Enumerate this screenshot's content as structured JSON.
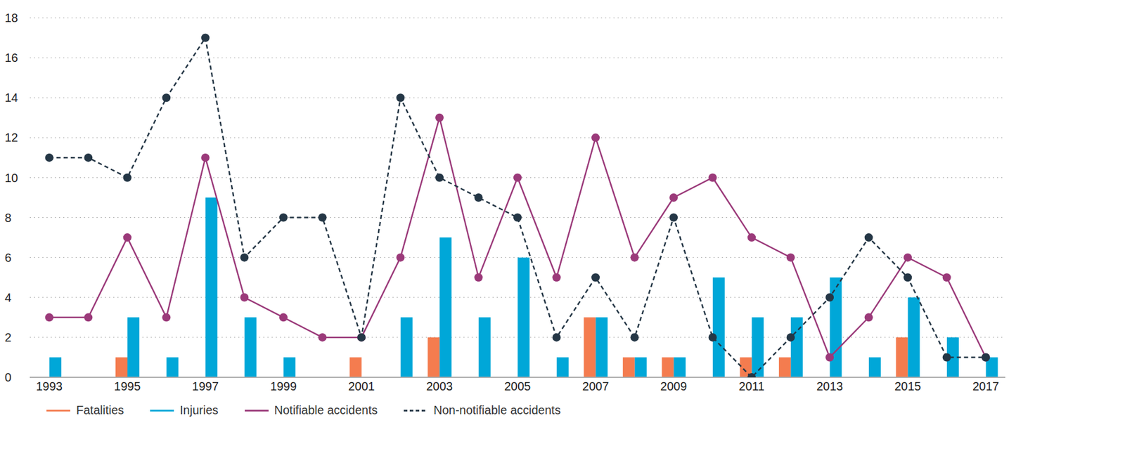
{
  "chart_data": {
    "type": "bar",
    "categories": [
      "1993",
      null,
      "1995",
      null,
      "1997",
      null,
      "1999",
      null,
      "2001",
      null,
      "2003",
      null,
      "2005",
      null,
      "2007",
      null,
      "2009",
      null,
      "2011",
      null,
      "2013",
      null,
      "2015",
      null,
      "2017"
    ],
    "series": [
      {
        "name": "Fatalities",
        "type": "bar",
        "color": "#f47c4f",
        "values": [
          0,
          0,
          1,
          0,
          0,
          0,
          0,
          0,
          1,
          0,
          2,
          0,
          0,
          0,
          3,
          1,
          1,
          0,
          1,
          1,
          0,
          0,
          2,
          0,
          0
        ]
      },
      {
        "name": "Injuries",
        "type": "bar",
        "color": "#00a7d8",
        "values": [
          1,
          0,
          3,
          1,
          9,
          3,
          1,
          0,
          0,
          3,
          7,
          3,
          6,
          1,
          3,
          1,
          1,
          5,
          3,
          3,
          5,
          1,
          4,
          2,
          1
        ]
      },
      {
        "name": "Notifiable accidents",
        "type": "line",
        "color": "#9b3a7a",
        "line_style": "solid",
        "marker": "circle",
        "values": [
          3,
          3,
          7,
          3,
          11,
          4,
          3,
          2,
          2,
          6,
          13,
          5,
          10,
          5,
          12,
          6,
          9,
          10,
          7,
          6,
          1,
          3,
          6,
          5,
          1
        ]
      },
      {
        "name": "Non-notifiable accidents",
        "type": "line",
        "color": "#253746",
        "line_style": "dashed",
        "marker": "circle",
        "values": [
          11,
          11,
          10,
          14,
          17,
          6,
          8,
          8,
          2,
          14,
          10,
          9,
          8,
          2,
          5,
          2,
          8,
          2,
          0,
          2,
          4,
          7,
          5,
          1,
          1
        ]
      }
    ],
    "ylim": [
      0,
      18
    ],
    "yticks": [
      0,
      2,
      4,
      6,
      8,
      10,
      12,
      14,
      16,
      18
    ],
    "grid": true,
    "legend": "bottom"
  }
}
